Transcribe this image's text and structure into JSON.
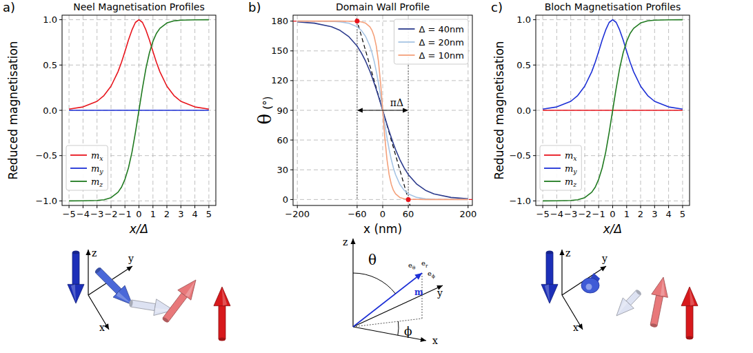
{
  "panel_labels": [
    "a)",
    "b)",
    "c)"
  ],
  "chart_data": [
    {
      "type": "line",
      "title": "Neel Magnetisation Profiles",
      "x_label": "x/Δ",
      "y_label": "Reduced magnetisation",
      "x": [
        -5,
        -4,
        -3,
        -2.5,
        -2,
        -1.5,
        -1.25,
        -1,
        -0.75,
        -0.5,
        -0.25,
        0,
        0.25,
        0.5,
        0.75,
        1,
        1.25,
        1.5,
        2,
        2.5,
        3,
        4,
        5
      ],
      "series": [
        {
          "name": "mx",
          "color": "#e8141c",
          "values": [
            0.013,
            0.037,
            0.099,
            0.163,
            0.266,
            0.425,
            0.53,
            0.648,
            0.776,
            0.887,
            0.97,
            1,
            0.97,
            0.887,
            0.776,
            0.648,
            0.53,
            0.425,
            0.266,
            0.163,
            0.099,
            0.037,
            0.013
          ]
        },
        {
          "name": "my",
          "color": "#1c2fd6",
          "values": [
            0,
            0,
            0,
            0,
            0,
            0,
            0,
            0,
            0,
            0,
            0,
            0,
            0,
            0,
            0,
            0,
            0,
            0,
            0,
            0,
            0,
            0,
            0
          ]
        },
        {
          "name": "mz",
          "color": "#1f7a1f",
          "values": [
            -1,
            -0.999,
            -0.995,
            -0.987,
            -0.964,
            -0.905,
            -0.848,
            -0.762,
            -0.635,
            -0.462,
            -0.245,
            0,
            0.245,
            0.462,
            0.635,
            0.762,
            0.848,
            0.905,
            0.964,
            0.987,
            0.995,
            0.999,
            1
          ]
        }
      ],
      "xlim": [
        -5.5,
        5.5
      ],
      "xticks": [
        {
          "value": -5,
          "label": "−5"
        },
        {
          "value": -4,
          "label": "−4"
        },
        {
          "value": -3,
          "label": "−3"
        },
        {
          "value": -2,
          "label": "−2"
        },
        {
          "value": -1,
          "label": "−1"
        },
        0,
        1,
        2,
        3,
        4,
        5
      ],
      "ylim": [
        -1.05,
        1.05
      ],
      "yticks": [
        {
          "value": -1,
          "label": "−1.0"
        },
        {
          "value": -0.5,
          "label": "−0.5"
        },
        {
          "value": 0,
          "label": "0.0"
        },
        0.5,
        {
          "value": 1,
          "label": "1.0"
        }
      ],
      "grid": true,
      "legend": "lower left"
    },
    {
      "type": "line",
      "title": "Domain Wall Profile",
      "x_label": "x (nm)",
      "y_label": "θ",
      "y_label_unit": "(°)",
      "x": [
        -200,
        -160,
        -120,
        -100,
        -80,
        -60,
        -50,
        -40,
        -30,
        -25,
        -20,
        -15,
        -10,
        -5,
        -2.5,
        0,
        2.5,
        5,
        10,
        15,
        20,
        25,
        30,
        40,
        50,
        60,
        80,
        100,
        120,
        160,
        200
      ],
      "series": [
        {
          "name": "Δ = 40nm",
          "color": "#2b3a8c",
          "values": [
            179.23,
            177.9,
            174.3,
            170.61,
            164.58,
            154.84,
            148.03,
            139.6,
            129.43,
            123.69,
            117.52,
            111,
            104.18,
            97.14,
            93.58,
            90,
            86.42,
            82.86,
            75.82,
            69,
            62.48,
            56.31,
            50.57,
            40.4,
            31.97,
            25.16,
            15.42,
            9.39,
            5.7,
            2.1,
            0.77
          ]
        },
        {
          "name": "Δ = 20nm",
          "color": "#a6c4e4",
          "values": [
            179.99,
            179.96,
            179.72,
            179.23,
            177.9,
            174.3,
            170.61,
            164.58,
            154.84,
            148.03,
            139.6,
            129.43,
            117.52,
            104.18,
            97.14,
            90,
            82.86,
            75.82,
            62.48,
            50.57,
            40.4,
            31.97,
            25.16,
            15.42,
            9.39,
            5.7,
            2.1,
            0.77,
            0.28,
            0.04,
            0.01
          ]
        },
        {
          "name": "Δ = 10nm",
          "color": "#f4a07a",
          "values": [
            180,
            180,
            180,
            179.99,
            179.96,
            179.72,
            179.23,
            177.9,
            174.3,
            170.61,
            164.58,
            154.84,
            139.6,
            117.52,
            104.18,
            90,
            75.82,
            62.48,
            40.4,
            25.16,
            15.42,
            9.39,
            5.7,
            2.1,
            0.77,
            0.28,
            0.04,
            0.01,
            0,
            0,
            0
          ]
        }
      ],
      "xlim": [
        -210,
        210
      ],
      "xticks": [
        {
          "value": -200,
          "label": "−200"
        },
        {
          "value": -60,
          "label": "−60"
        },
        0,
        60,
        200
      ],
      "ylim": [
        -6,
        186
      ],
      "yticks": [
        0,
        30,
        60,
        90,
        120,
        150,
        180
      ],
      "grid": true,
      "legend": "upper right",
      "tangent": {
        "x": [
          -60,
          60
        ],
        "y": [
          180,
          0
        ]
      },
      "annotations": [
        {
          "text": "πΔ",
          "x": [
            -60,
            60
          ],
          "y": 90
        }
      ]
    },
    {
      "type": "line",
      "title": "Bloch Magnetisation Profiles",
      "x_label": "x/Δ",
      "y_label": "Reduced magnetisation",
      "x": [
        -5,
        -4,
        -3,
        -2.5,
        -2,
        -1.5,
        -1.25,
        -1,
        -0.75,
        -0.5,
        -0.25,
        0,
        0.25,
        0.5,
        0.75,
        1,
        1.25,
        1.5,
        2,
        2.5,
        3,
        4,
        5
      ],
      "series": [
        {
          "name": "mx",
          "color": "#e8141c",
          "values": [
            0,
            0,
            0,
            0,
            0,
            0,
            0,
            0,
            0,
            0,
            0,
            0,
            0,
            0,
            0,
            0,
            0,
            0,
            0,
            0,
            0,
            0,
            0
          ]
        },
        {
          "name": "my",
          "color": "#1c2fd6",
          "values": [
            0.013,
            0.037,
            0.099,
            0.163,
            0.266,
            0.425,
            0.53,
            0.648,
            0.776,
            0.887,
            0.97,
            1,
            0.97,
            0.887,
            0.776,
            0.648,
            0.53,
            0.425,
            0.266,
            0.163,
            0.099,
            0.037,
            0.013
          ]
        },
        {
          "name": "mz",
          "color": "#1f7a1f",
          "values": [
            -1,
            -0.999,
            -0.995,
            -0.987,
            -0.964,
            -0.905,
            -0.848,
            -0.762,
            -0.635,
            -0.462,
            -0.245,
            0,
            0.245,
            0.462,
            0.635,
            0.762,
            0.848,
            0.905,
            0.964,
            0.987,
            0.995,
            0.999,
            1
          ]
        }
      ],
      "xlim": [
        -5.5,
        5.5
      ],
      "xticks": [
        {
          "value": -5,
          "label": "−5"
        },
        {
          "value": -4,
          "label": "−4"
        },
        {
          "value": -3,
          "label": "−3"
        },
        {
          "value": -2,
          "label": "−2"
        },
        {
          "value": -1,
          "label": "−1"
        },
        0,
        1,
        2,
        3,
        4,
        5
      ],
      "ylim": [
        -1.05,
        1.05
      ],
      "yticks": [
        {
          "value": -1,
          "label": "−1.0"
        },
        {
          "value": -0.5,
          "label": "−0.5"
        },
        {
          "value": 0,
          "label": "0.0"
        },
        0.5,
        {
          "value": 1,
          "label": "1.0"
        }
      ],
      "grid": true,
      "legend": "lower left"
    }
  ],
  "diagrams": [
    {
      "axes": [
        "z",
        "y",
        "x"
      ]
    },
    {
      "axes": [
        "z",
        "y",
        "x"
      ],
      "angles": [
        "θ",
        "ϕ"
      ],
      "vectors": [
        "eθ",
        "er",
        "eϕ"
      ],
      "moment": "m"
    },
    {
      "axes": [
        "z",
        "y",
        "x"
      ]
    }
  ]
}
